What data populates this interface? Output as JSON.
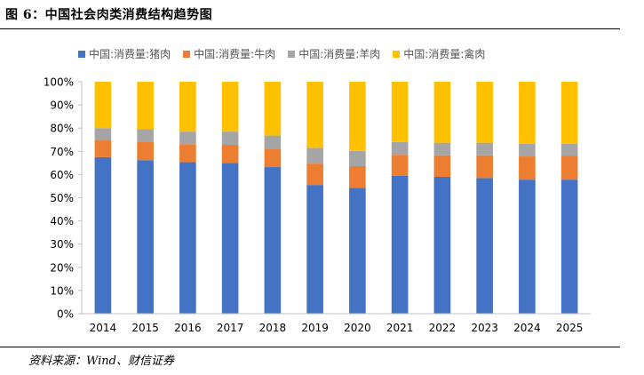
{
  "figure": {
    "title": "图 6：中国社会肉类消费结构趋势图",
    "source": "资料来源：Wind、财信证券"
  },
  "chart_data": {
    "type": "bar",
    "stacked": true,
    "percent": true,
    "categories": [
      "2014",
      "2015",
      "2016",
      "2017",
      "2018",
      "2019",
      "2020",
      "2021",
      "2022",
      "2023",
      "2024",
      "2025"
    ],
    "series": [
      {
        "name": "中国:消费量:猪肉",
        "color": "#4472C4",
        "values": [
          67.5,
          66.2,
          65.3,
          65.0,
          63.2,
          55.5,
          54.3,
          59.5,
          59.0,
          58.5,
          57.8,
          57.8
        ]
      },
      {
        "name": "中国:消费量:牛肉",
        "color": "#ED7D31",
        "values": [
          7.2,
          7.9,
          7.8,
          7.8,
          7.9,
          9.2,
          9.3,
          9.0,
          9.3,
          9.8,
          10.0,
          10.2
        ]
      },
      {
        "name": "中国:消费量:羊肉",
        "color": "#A5A5A5",
        "values": [
          5.3,
          5.4,
          5.4,
          5.7,
          5.7,
          6.8,
          6.6,
          5.5,
          5.4,
          5.4,
          5.4,
          5.3
        ]
      },
      {
        "name": "中国:消费量:禽肉",
        "color": "#FFC000",
        "values": [
          20.0,
          20.5,
          21.5,
          21.5,
          23.2,
          28.5,
          29.8,
          26.0,
          26.3,
          26.3,
          26.8,
          26.7
        ]
      }
    ],
    "ylim": [
      0,
      100
    ],
    "y_ticks": [
      "0%",
      "10%",
      "20%",
      "30%",
      "40%",
      "50%",
      "60%",
      "70%",
      "80%",
      "90%",
      "100%"
    ],
    "y_tick_values": [
      0,
      10,
      20,
      30,
      40,
      50,
      60,
      70,
      80,
      90,
      100
    ],
    "legend_position": "top",
    "grid": false
  }
}
